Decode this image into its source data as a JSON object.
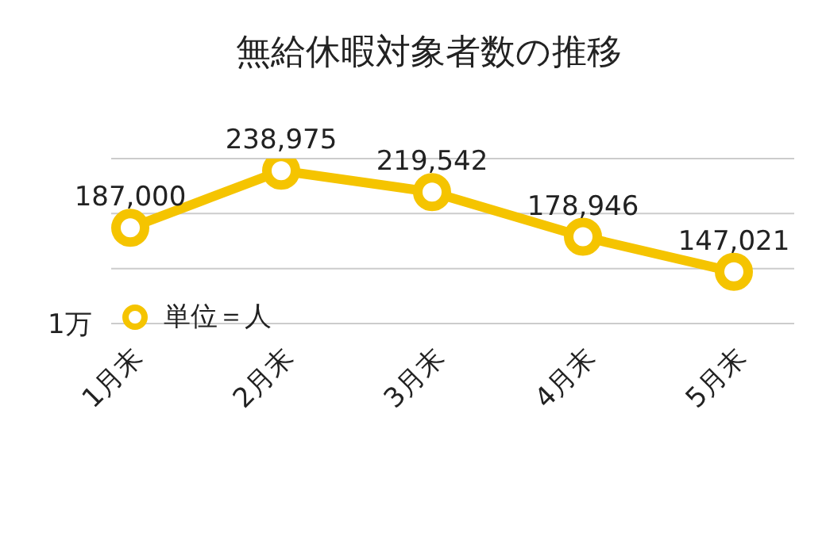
{
  "chart_data": {
    "type": "line",
    "title": "無給休暇対象者数の推移",
    "categories": [
      "1月末",
      "2月末",
      "3月末",
      "4月末",
      "5月末"
    ],
    "series": [
      {
        "name": "単位＝人",
        "color": "#f5c400",
        "values": [
          187000,
          238975,
          219542,
          178946,
          147021
        ],
        "value_labels": [
          "187,000",
          "238,975",
          "219,542",
          "178,946",
          "147,021"
        ]
      }
    ],
    "ylim": [
      100000,
      250000
    ],
    "yticks": [
      {
        "value": 100000,
        "label": null
      },
      {
        "value": 150000,
        "label": null
      },
      {
        "value": 200000,
        "label": null
      },
      {
        "value": 250000,
        "label": null
      }
    ],
    "annotations": [
      "1万"
    ],
    "grid": "y",
    "legend": "bottom left",
    "marker": "circle",
    "line_style": "solid"
  }
}
